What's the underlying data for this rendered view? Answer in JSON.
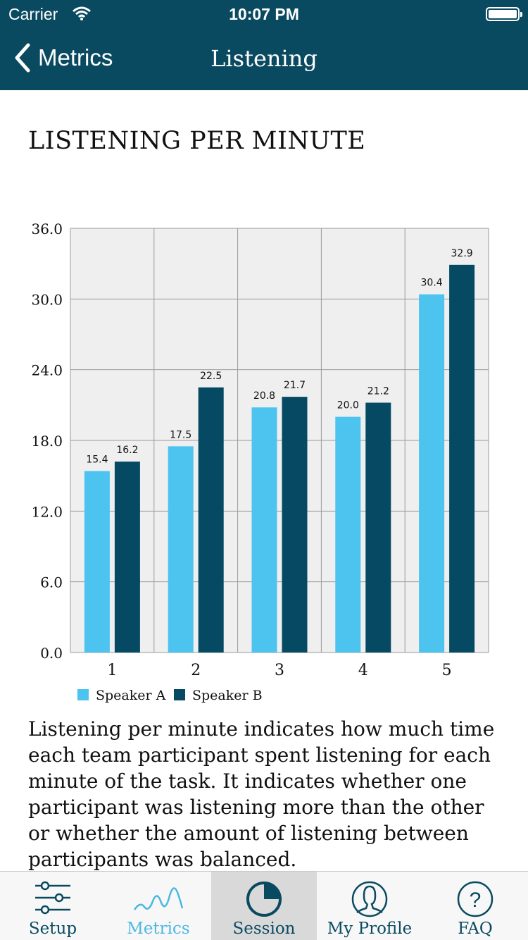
{
  "status_bar": {
    "carrier": "Carrier",
    "time": "10:07 PM"
  },
  "nav": {
    "back_label": "Metrics",
    "title": "Listening"
  },
  "page_title": "LISTENING PER MINUTE",
  "colors": {
    "header": "#0a4a60",
    "speaker_a": "#4dc3f0",
    "speaker_b": "#054a62",
    "active_tab": "#4ab8e0"
  },
  "chart_data": {
    "type": "bar",
    "categories": [
      "1",
      "2",
      "3",
      "4",
      "5"
    ],
    "series": [
      {
        "name": "Speaker A",
        "values": [
          15.4,
          17.5,
          20.8,
          20.0,
          30.4
        ]
      },
      {
        "name": "Speaker B",
        "values": [
          16.2,
          22.5,
          21.7,
          21.2,
          32.9
        ]
      }
    ],
    "yticks": [
      "0.0",
      "6.0",
      "12.0",
      "18.0",
      "24.0",
      "30.0",
      "36.0"
    ],
    "ylim": [
      0,
      36
    ],
    "grid": true,
    "legend": "bottom-left"
  },
  "description": "Listening per minute indicates how much time each team participant spent listening for each minute of the task. It indicates whether one participant was listening more than the other or whether the amount of listening between participants was balanced.",
  "tabbar": {
    "items": [
      {
        "label": "Setup",
        "icon": "sliders-icon"
      },
      {
        "label": "Metrics",
        "icon": "wave-icon"
      },
      {
        "label": "Session",
        "icon": "pie-icon"
      },
      {
        "label": "My Profile",
        "icon": "profile-icon"
      },
      {
        "label": "FAQ",
        "icon": "question-icon"
      }
    ]
  }
}
